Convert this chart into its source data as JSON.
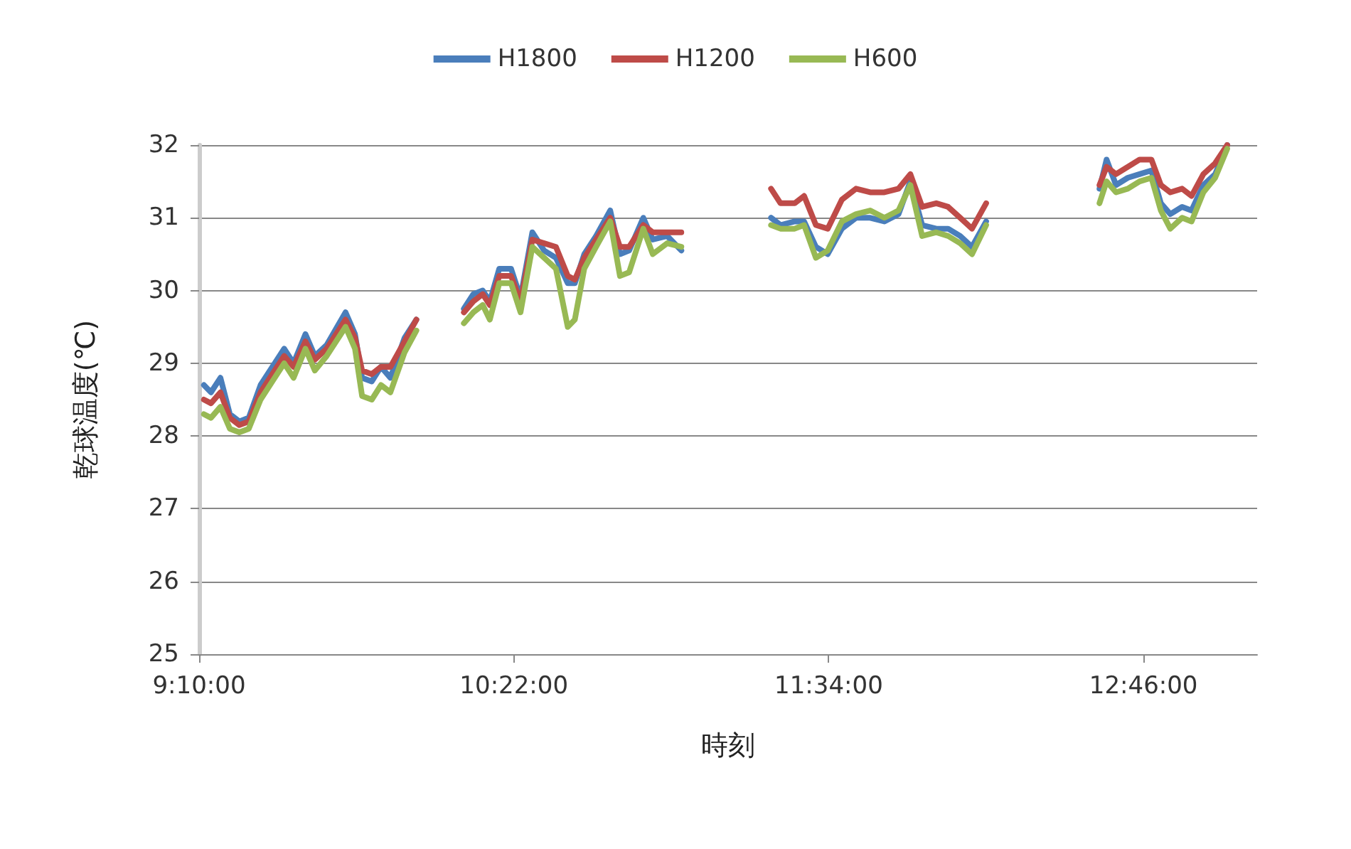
{
  "chart_data": {
    "type": "line",
    "xlabel": "時刻",
    "ylabel": "乾球温度(℃)",
    "x": [
      9.185,
      9.212,
      9.248,
      9.284,
      9.32,
      9.356,
      9.401,
      9.446,
      9.491,
      9.527,
      9.572,
      9.608,
      9.653,
      9.725,
      9.761,
      9.788,
      9.825,
      9.86,
      9.896,
      9.95,
      9.995,
      10.09,
      10.176,
      10.212,
      10.248,
      10.275,
      10.311,
      10.356,
      10.392,
      10.437,
      10.482,
      10.527,
      10.572,
      10.599,
      10.635,
      10.68,
      10.734,
      10.771,
      10.806,
      10.86,
      10.896,
      10.951,
      11.005,
      11.2,
      11.347,
      11.383,
      11.437,
      11.473,
      11.518,
      11.563,
      11.617,
      11.671,
      11.725,
      11.779,
      11.833,
      11.878,
      11.923,
      11.977,
      12.022,
      12.068,
      12.113,
      12.167,
      12.4,
      12.599,
      12.626,
      12.662,
      12.707,
      12.752,
      12.797,
      12.833,
      12.869,
      12.914,
      12.95,
      12.995,
      13.04,
      13.086
    ],
    "series": [
      {
        "name": "H1800",
        "color": "#4a7ebb",
        "values": [
          28.7,
          28.6,
          28.8,
          28.3,
          28.2,
          28.25,
          28.7,
          28.95,
          29.2,
          29.0,
          29.4,
          29.1,
          29.25,
          29.7,
          29.4,
          28.8,
          28.75,
          28.95,
          28.8,
          29.35,
          29.6,
          null,
          29.75,
          29.95,
          30.0,
          29.85,
          30.3,
          30.3,
          29.9,
          30.8,
          30.55,
          30.45,
          30.1,
          30.1,
          30.5,
          30.75,
          31.1,
          30.5,
          30.55,
          31.0,
          30.7,
          30.75,
          30.55,
          null,
          31.0,
          30.9,
          30.95,
          30.95,
          30.6,
          30.5,
          30.85,
          31.0,
          31.0,
          30.95,
          31.05,
          31.5,
          30.9,
          30.85,
          30.85,
          30.75,
          30.6,
          30.95,
          null,
          31.4,
          31.8,
          31.45,
          31.55,
          31.6,
          31.65,
          31.2,
          31.05,
          31.15,
          31.1,
          31.45,
          31.6,
          32.0
        ]
      },
      {
        "name": "H1200",
        "color": "#be4b48",
        "values": [
          28.5,
          28.45,
          28.6,
          28.25,
          28.15,
          28.2,
          28.6,
          28.85,
          29.1,
          28.95,
          29.3,
          29.05,
          29.2,
          29.6,
          29.35,
          28.9,
          28.85,
          28.95,
          28.95,
          29.3,
          29.6,
          null,
          29.7,
          29.85,
          29.95,
          29.8,
          30.2,
          30.2,
          29.85,
          30.7,
          30.65,
          30.6,
          30.2,
          30.15,
          30.45,
          30.7,
          31.0,
          30.6,
          30.6,
          30.9,
          30.8,
          30.8,
          30.8,
          null,
          31.4,
          31.2,
          31.2,
          31.3,
          30.9,
          30.85,
          31.25,
          31.4,
          31.35,
          31.35,
          31.4,
          31.6,
          31.15,
          31.2,
          31.15,
          31.0,
          30.85,
          31.2,
          null,
          31.45,
          31.7,
          31.6,
          31.7,
          31.8,
          31.8,
          31.45,
          31.35,
          31.4,
          31.3,
          31.6,
          31.75,
          32.0
        ]
      },
      {
        "name": "H600",
        "color": "#98b954",
        "values": [
          28.3,
          28.25,
          28.4,
          28.1,
          28.05,
          28.1,
          28.5,
          28.75,
          29.0,
          28.8,
          29.2,
          28.9,
          29.1,
          29.5,
          29.2,
          28.55,
          28.5,
          28.7,
          28.6,
          29.15,
          29.45,
          null,
          29.55,
          29.7,
          29.8,
          29.6,
          30.1,
          30.1,
          29.7,
          30.6,
          30.45,
          30.3,
          29.5,
          29.6,
          30.3,
          30.6,
          30.95,
          30.2,
          30.25,
          30.85,
          30.5,
          30.65,
          30.6,
          null,
          30.9,
          30.85,
          30.85,
          30.9,
          30.45,
          30.55,
          30.95,
          31.05,
          31.1,
          31.0,
          31.1,
          31.45,
          30.75,
          30.8,
          30.75,
          30.65,
          30.5,
          30.9,
          null,
          31.2,
          31.5,
          31.35,
          31.4,
          31.5,
          31.55,
          31.1,
          30.85,
          31.0,
          30.95,
          31.35,
          31.55,
          31.95
        ]
      }
    ],
    "xlim": [
      9.1667,
      13.2
    ],
    "xticks": [
      {
        "value": 9.1667,
        "label": "9:10:00"
      },
      {
        "value": 10.3667,
        "label": "10:22:00"
      },
      {
        "value": 11.5667,
        "label": "11:34:00"
      },
      {
        "value": 12.7667,
        "label": "12:46:00"
      }
    ],
    "ylim": [
      25,
      32
    ],
    "yticks": [
      25,
      26,
      27,
      28,
      29,
      30,
      31,
      32
    ],
    "grid": "y",
    "legend": "top",
    "marker": "none",
    "line_style": "solid"
  }
}
